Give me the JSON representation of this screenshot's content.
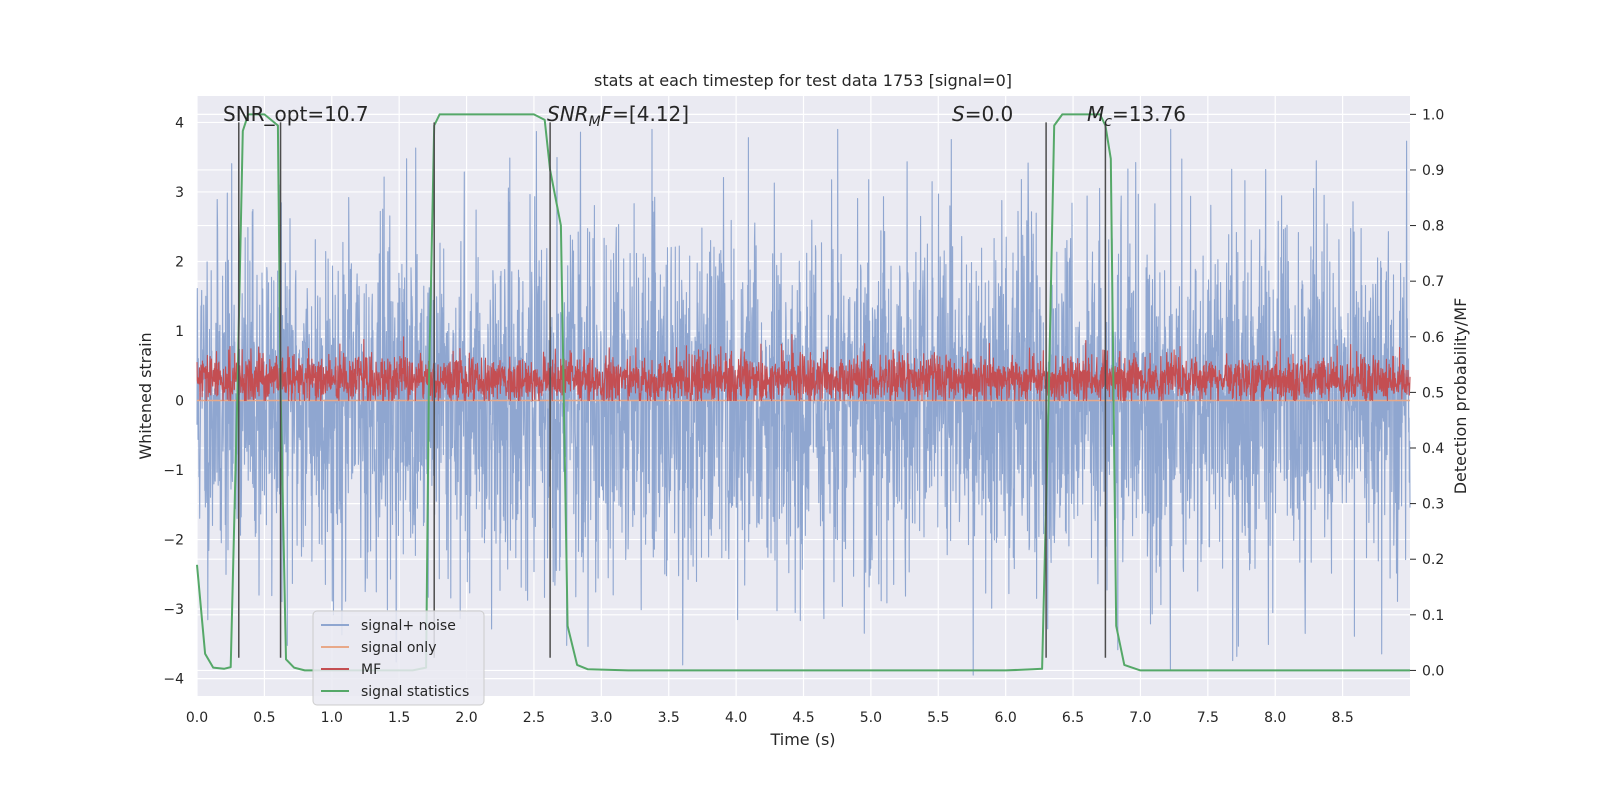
{
  "chart_data": {
    "type": "line",
    "title": "stats at each timestep for test data 1753 [signal=0]",
    "xlabel": "Time (s)",
    "ylabel": "Whitened strain",
    "ylabel_right": "Detection probability/MF",
    "xlim": [
      0.0,
      9.0
    ],
    "ylim": [
      -4.25,
      4.38
    ],
    "ylim_right": [
      -0.046,
      1.033
    ],
    "x_ticks": [
      "0.0",
      "0.5",
      "1.0",
      "1.5",
      "2.0",
      "2.5",
      "3.0",
      "3.5",
      "4.0",
      "4.5",
      "5.0",
      "5.5",
      "6.0",
      "6.5",
      "7.0",
      "7.5",
      "8.0",
      "8.5"
    ],
    "x_tick_values": [
      0.0,
      0.5,
      1.0,
      1.5,
      2.0,
      2.5,
      3.0,
      3.5,
      4.0,
      4.5,
      5.0,
      5.5,
      6.0,
      6.5,
      7.0,
      7.5,
      8.0,
      8.5
    ],
    "y_ticks": [
      "−4",
      "−3",
      "−2",
      "−1",
      "0",
      "1",
      "2",
      "3",
      "4"
    ],
    "y_tick_values": [
      -4,
      -3,
      -2,
      -1,
      0,
      1,
      2,
      3,
      4
    ],
    "y_ticks_right": [
      "0.0",
      "0.1",
      "0.2",
      "0.3",
      "0.4",
      "0.5",
      "0.6",
      "0.7",
      "0.8",
      "0.9",
      "1.0"
    ],
    "y_tick_values_right": [
      0.0,
      0.1,
      0.2,
      0.3,
      0.4,
      0.5,
      0.6,
      0.7,
      0.8,
      0.9,
      1.0
    ],
    "annotations": [
      {
        "id": "snr-opt",
        "text": "SNR_opt=10.7",
        "x": 0.2
      },
      {
        "id": "snr-mf",
        "text": "SNR",
        "sub": "M",
        "italic_tail": "F",
        "tail": "=[4.12]",
        "x": 2.6
      },
      {
        "id": "s-value",
        "text": "S",
        "tail": "=0.0",
        "x": 5.6
      },
      {
        "id": "mc-value",
        "text": "M",
        "sub": "c",
        "tail": "=13.76",
        "x": 6.6
      }
    ],
    "series": [
      {
        "name": "signal+ noise",
        "color": "#8fa6d0",
        "kind": "noise",
        "axis": "left",
        "mean": 0.0,
        "spread": 1.25,
        "seed": 11
      },
      {
        "name": "signal only",
        "color": "#e8a888",
        "kind": "flat",
        "axis": "left",
        "values": [
          0.0,
          0.0
        ]
      },
      {
        "name": "MF",
        "color": "#c44e52",
        "kind": "noise",
        "axis": "left",
        "mean": 0.3,
        "spread": 0.18,
        "seed": 29
      },
      {
        "name": "signal statistics",
        "color": "#55a868",
        "kind": "line",
        "axis": "right",
        "x": [
          0.0,
          0.06,
          0.12,
          0.2,
          0.25,
          0.3,
          0.34,
          0.38,
          0.42,
          0.5,
          0.55,
          0.6,
          0.62,
          0.66,
          0.72,
          0.8,
          0.9,
          1.0,
          1.2,
          1.4,
          1.6,
          1.7,
          1.72,
          1.76,
          1.8,
          1.85,
          2.0,
          2.2,
          2.4,
          2.5,
          2.58,
          2.62,
          2.7,
          2.75,
          2.82,
          2.9,
          3.2,
          4.0,
          5.0,
          6.0,
          6.2,
          6.27,
          6.32,
          6.36,
          6.42,
          6.6,
          6.7,
          6.74,
          6.78,
          6.82,
          6.88,
          7.0,
          7.5,
          8.0,
          8.5,
          9.0
        ],
        "values": [
          0.19,
          0.03,
          0.005,
          0.003,
          0.006,
          0.5,
          0.97,
          1.0,
          1.0,
          1.0,
          0.99,
          0.98,
          0.5,
          0.02,
          0.005,
          0.0,
          0.0,
          0.0,
          0.0,
          0.0,
          0.0,
          0.005,
          0.5,
          0.98,
          1.0,
          1.0,
          1.0,
          1.0,
          1.0,
          1.0,
          0.99,
          0.9,
          0.8,
          0.08,
          0.01,
          0.002,
          0.0,
          0.0,
          0.0,
          0.0,
          0.002,
          0.003,
          0.5,
          0.98,
          1.0,
          1.0,
          1.0,
          0.98,
          0.92,
          0.08,
          0.01,
          0.0,
          0.0,
          0.0,
          0.0,
          0.0
        ]
      }
    ],
    "vlines": [
      {
        "x": 0.31,
        "ymin": -3.7,
        "ymax": 4.0
      },
      {
        "x": 0.62,
        "ymin": -3.7,
        "ymax": 4.0
      },
      {
        "x": 1.76,
        "ymin": -3.7,
        "ymax": 4.0
      },
      {
        "x": 2.62,
        "ymin": -3.7,
        "ymax": 4.0
      },
      {
        "x": 6.3,
        "ymin": -3.7,
        "ymax": 4.0
      },
      {
        "x": 6.74,
        "ymin": -3.7,
        "ymax": 4.0
      }
    ],
    "legend_position": "lower-left",
    "grid": true,
    "colors": {
      "background": "#eaeaf2",
      "grid": "#ffffff",
      "vline": "#4d4d4d"
    }
  }
}
